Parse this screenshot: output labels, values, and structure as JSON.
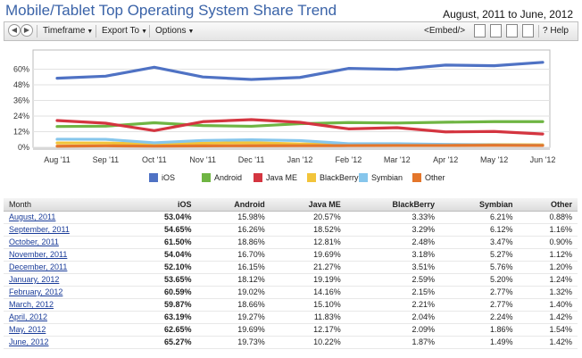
{
  "header": {
    "title": "Mobile/Tablet Top Operating System Share Trend",
    "date_range": "August, 2011 to June, 2012"
  },
  "toolbar": {
    "timeframe": "Timeframe",
    "export": "Export To",
    "options": "Options",
    "embed": "<Embed/>",
    "help": "Help"
  },
  "colors": {
    "iOS": "#4f72c4",
    "Android": "#6fb543",
    "Java ME": "#d43540",
    "BlackBerry": "#f2c43a",
    "Symbian": "#86c6ec",
    "Other": "#e4762b"
  },
  "chart_data": {
    "type": "line",
    "x": [
      "Aug '11",
      "Sep '11",
      "Oct '11",
      "Nov '11",
      "Dec '11",
      "Jan '12",
      "Feb '12",
      "Mar '12",
      "Apr '12",
      "May '12",
      "Jun '12"
    ],
    "ylim": [
      0,
      72
    ],
    "yticks": [
      "0%",
      "12%",
      "24%",
      "36%",
      "48%",
      "60%"
    ],
    "grid": true,
    "legend": "bottom",
    "series": [
      {
        "name": "iOS",
        "values": [
          53.04,
          54.65,
          61.5,
          54.04,
          52.1,
          53.65,
          60.59,
          59.87,
          63.19,
          62.65,
          65.27
        ]
      },
      {
        "name": "Android",
        "values": [
          15.98,
          16.26,
          18.86,
          16.7,
          16.15,
          18.12,
          19.02,
          18.66,
          19.27,
          19.69,
          19.73
        ]
      },
      {
        "name": "Java ME",
        "values": [
          20.57,
          18.52,
          12.81,
          19.69,
          21.27,
          19.19,
          14.16,
          15.1,
          11.83,
          12.17,
          10.22
        ]
      },
      {
        "name": "BlackBerry",
        "values": [
          3.33,
          3.29,
          2.48,
          3.18,
          3.51,
          2.59,
          2.15,
          2.21,
          2.04,
          2.09,
          1.87
        ]
      },
      {
        "name": "Symbian",
        "values": [
          6.21,
          6.12,
          3.47,
          5.27,
          5.76,
          5.2,
          2.77,
          2.77,
          2.24,
          1.86,
          1.49
        ]
      },
      {
        "name": "Other",
        "values": [
          0.88,
          1.16,
          0.9,
          1.12,
          1.2,
          1.24,
          1.32,
          1.4,
          1.42,
          1.54,
          1.42
        ]
      }
    ]
  },
  "table": {
    "headers": [
      "Month",
      "iOS",
      "Android",
      "Java ME",
      "BlackBerry",
      "Symbian",
      "Other"
    ],
    "rows": [
      [
        "August, 2011",
        "53.04%",
        "15.98%",
        "20.57%",
        "3.33%",
        "6.21%",
        "0.88%"
      ],
      [
        "September, 2011",
        "54.65%",
        "16.26%",
        "18.52%",
        "3.29%",
        "6.12%",
        "1.16%"
      ],
      [
        "October, 2011",
        "61.50%",
        "18.86%",
        "12.81%",
        "2.48%",
        "3.47%",
        "0.90%"
      ],
      [
        "November, 2011",
        "54.04%",
        "16.70%",
        "19.69%",
        "3.18%",
        "5.27%",
        "1.12%"
      ],
      [
        "December, 2011",
        "52.10%",
        "16.15%",
        "21.27%",
        "3.51%",
        "5.76%",
        "1.20%"
      ],
      [
        "January, 2012",
        "53.65%",
        "18.12%",
        "19.19%",
        "2.59%",
        "5.20%",
        "1.24%"
      ],
      [
        "February, 2012",
        "60.59%",
        "19.02%",
        "14.16%",
        "2.15%",
        "2.77%",
        "1.32%"
      ],
      [
        "March, 2012",
        "59.87%",
        "18.66%",
        "15.10%",
        "2.21%",
        "2.77%",
        "1.40%"
      ],
      [
        "April, 2012",
        "63.19%",
        "19.27%",
        "11.83%",
        "2.04%",
        "2.24%",
        "1.42%"
      ],
      [
        "May, 2012",
        "62.65%",
        "19.69%",
        "12.17%",
        "2.09%",
        "1.86%",
        "1.54%"
      ],
      [
        "June, 2012",
        "65.27%",
        "19.73%",
        "10.22%",
        "1.87%",
        "1.49%",
        "1.42%"
      ]
    ]
  }
}
